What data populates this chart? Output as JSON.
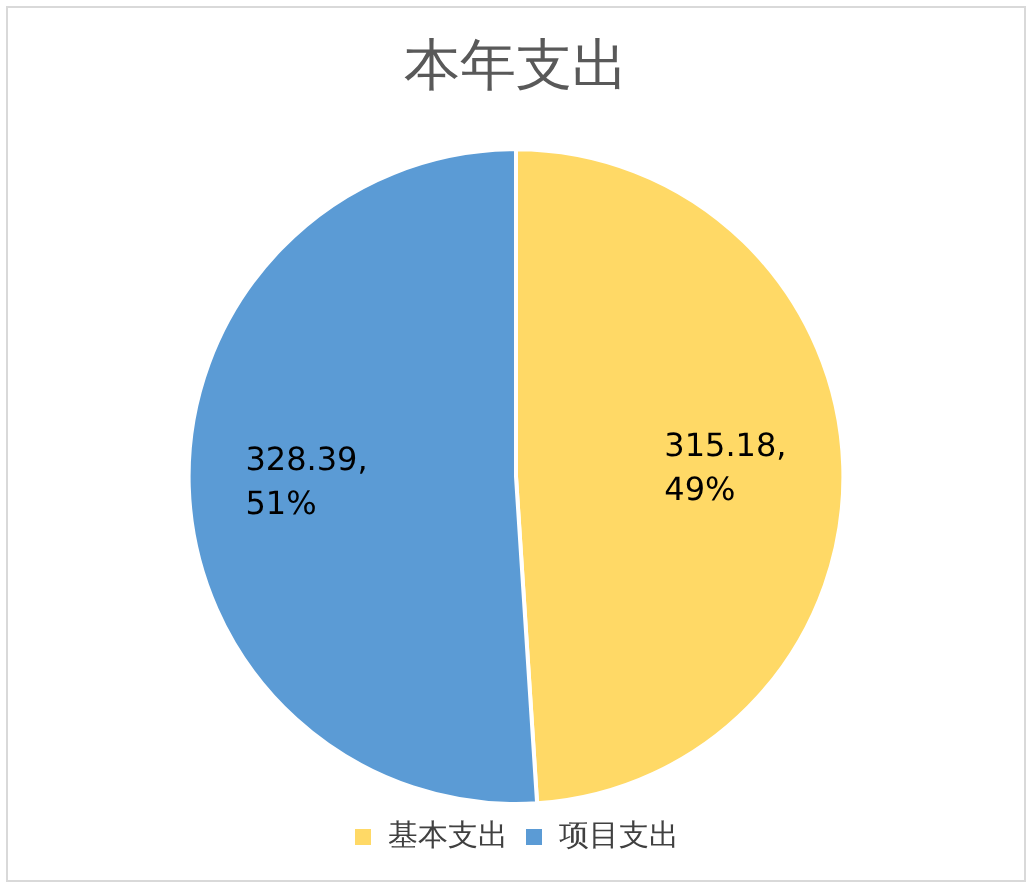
{
  "chart_data": {
    "type": "pie",
    "title": "本年支出",
    "categories": [
      "基本支出",
      "项目支出"
    ],
    "values": [
      315.18,
      328.39
    ],
    "colors": [
      "#ffd966",
      "#5b9bd5"
    ],
    "value_labels": [
      "315.18, 49%",
      "328.39, 51%"
    ],
    "legend": "bottom"
  }
}
